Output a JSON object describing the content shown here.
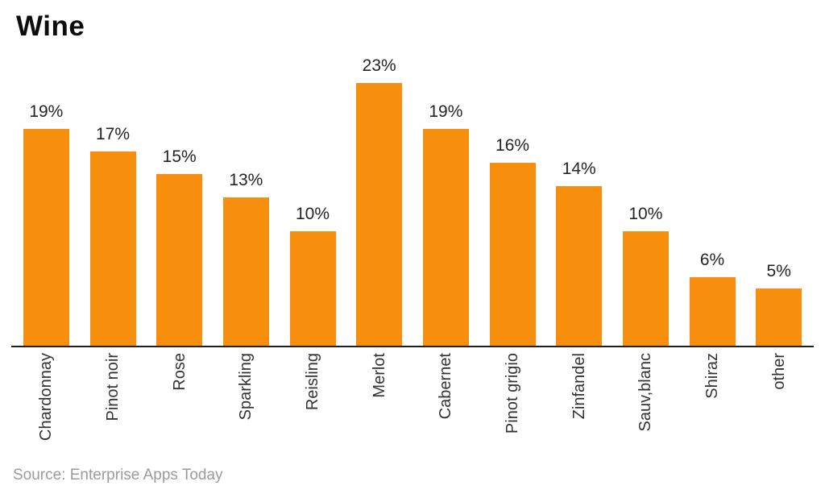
{
  "chart_data": {
    "type": "bar",
    "title": "Wine",
    "categories": [
      "Chardonnay",
      "Pinot noir",
      "Rose",
      "Sparkling",
      "Reisling",
      "Merlot",
      "Cabernet",
      "Pinot grigio",
      "Zinfandel",
      "Sauv,blanc",
      "Shiraz",
      "other"
    ],
    "values": [
      19,
      17,
      15,
      13,
      10,
      23,
      19,
      16,
      14,
      10,
      6,
      5
    ],
    "value_labels": [
      "19%",
      "17%",
      "15%",
      "13%",
      "10%",
      "23%",
      "19%",
      "16%",
      "14%",
      "10%",
      "6%",
      "5%"
    ],
    "xlabel": "",
    "ylabel": "",
    "ylim": [
      0,
      25
    ],
    "grid": false,
    "legend": false,
    "x_label_rotation_deg": -90,
    "bar_color": "#F78E0D",
    "axis_color": "#1f1f1f",
    "value_label_color": "#242424",
    "category_label_color": "#333333",
    "title_color": "#0d0d0d",
    "source_color": "#9b9b9b",
    "source": "Source: Enterprise Apps Today"
  }
}
